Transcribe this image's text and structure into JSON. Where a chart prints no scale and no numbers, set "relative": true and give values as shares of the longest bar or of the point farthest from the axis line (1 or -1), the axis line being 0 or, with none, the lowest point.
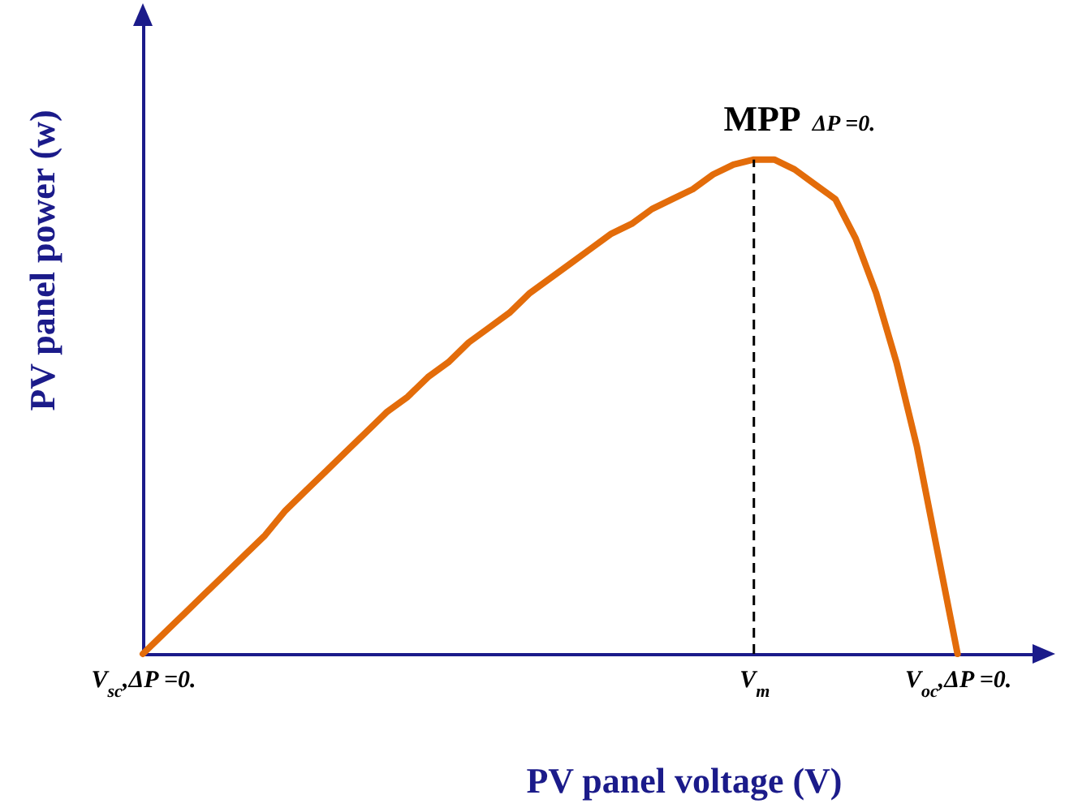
{
  "chart_data": {
    "type": "line",
    "relative": true,
    "color": "#e36c0a",
    "xlabel": "PV panel voltage (V)",
    "ylabel": "PV panel power (w)",
    "categories": [
      "V$_{sc}$,ΔP =0.",
      null,
      null,
      null,
      null,
      null,
      null,
      null,
      null,
      null,
      null,
      null,
      null,
      null,
      null,
      null,
      null,
      null,
      null,
      null,
      null,
      null,
      null,
      null,
      null,
      null,
      null,
      null,
      null,
      null,
      "V$_{m}$",
      null,
      null,
      null,
      null,
      null,
      null,
      null,
      null,
      null,
      "V$_{oc}$,ΔP =0."
    ],
    "values": [
      0,
      0.04,
      0.08,
      0.12,
      0.16,
      0.2,
      0.24,
      0.29,
      0.33,
      0.37,
      0.41,
      0.45,
      0.49,
      0.52,
      0.56,
      0.59,
      0.63,
      0.66,
      0.69,
      0.73,
      0.76,
      0.79,
      0.82,
      0.85,
      0.87,
      0.9,
      0.92,
      0.94,
      0.97,
      0.99,
      1,
      1,
      0.98,
      0.95,
      0.92,
      0.84,
      0.73,
      0.59,
      0.42,
      0.21,
      0
    ],
    "ref_lines": [
      {
        "axis": "x",
        "value": "V$_{m}$",
        "line_style": "dashed"
      }
    ],
    "annotations": [
      {
        "text": "MPP",
        "x": "V$_{m}$",
        "y": 1
      },
      {
        "text": "ΔP =0.",
        "x": "V$_{m}$",
        "y": 1
      }
    ]
  }
}
